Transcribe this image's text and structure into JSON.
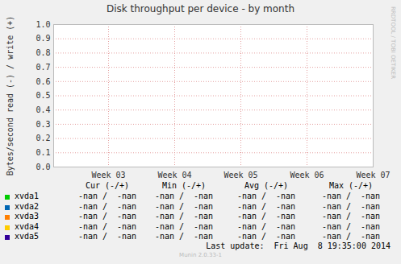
{
  "chart_data": {
    "type": "line",
    "title": "Disk throughput per device - by month",
    "y_label": "Bytes/second read (-) / write (+)",
    "x": [
      "Week 03",
      "Week 04",
      "Week 05",
      "Week 06",
      "Week 07"
    ],
    "ylim": [
      0,
      1
    ],
    "yticks": [
      {
        "value": 0,
        "label": "0.0"
      },
      {
        "value": 0.1,
        "label": "0.1"
      },
      {
        "value": 0.2,
        "label": "0.2"
      },
      {
        "value": 0.3,
        "label": "0.3"
      },
      {
        "value": 0.4,
        "label": "0.4"
      },
      {
        "value": 0.5,
        "label": "0.5"
      },
      {
        "value": 0.6,
        "label": "0.6"
      },
      {
        "value": 0.7,
        "label": "0.7"
      },
      {
        "value": 0.8,
        "label": "0.8"
      },
      {
        "value": 0.9,
        "label": "0.9"
      },
      {
        "value": 1,
        "label": "1.0"
      }
    ],
    "grid": true,
    "legend_columns": [
      "Cur (-/+)",
      "Min (-/+)",
      "Avg (-/+)",
      "Max (-/+)"
    ],
    "series": [
      {
        "name": "xvda1",
        "color": "#00CC00",
        "values": [
          null,
          null,
          null,
          null,
          null
        ],
        "stats": [
          "-nan /  -nan",
          "-nan /  -nan",
          "-nan /  -nan",
          "-nan /  -nan"
        ]
      },
      {
        "name": "xvda2",
        "color": "#0066B3",
        "values": [
          null,
          null,
          null,
          null,
          null
        ],
        "stats": [
          "-nan /  -nan",
          "-nan /  -nan",
          "-nan /  -nan",
          "-nan /  -nan"
        ]
      },
      {
        "name": "xvda3",
        "color": "#FF8000",
        "values": [
          null,
          null,
          null,
          null,
          null
        ],
        "stats": [
          "-nan /  -nan",
          "-nan /  -nan",
          "-nan /  -nan",
          "-nan /  -nan"
        ]
      },
      {
        "name": "xvda4",
        "color": "#FFCC00",
        "values": [
          null,
          null,
          null,
          null,
          null
        ],
        "stats": [
          "-nan /  -nan",
          "-nan /  -nan",
          "-nan /  -nan",
          "-nan /  -nan"
        ]
      },
      {
        "name": "xvda5",
        "color": "#330099",
        "values": [
          null,
          null,
          null,
          null,
          null
        ],
        "stats": [
          "-nan /  -nan",
          "-nan /  -nan",
          "-nan /  -nan",
          "-nan /  -nan"
        ]
      }
    ],
    "last_update": "Last update:  Fri Aug  8 19:35:00 2014",
    "footer": "Munin 2.0.33-1",
    "watermark": "RRDTOOL / TOBI OETIKER"
  }
}
